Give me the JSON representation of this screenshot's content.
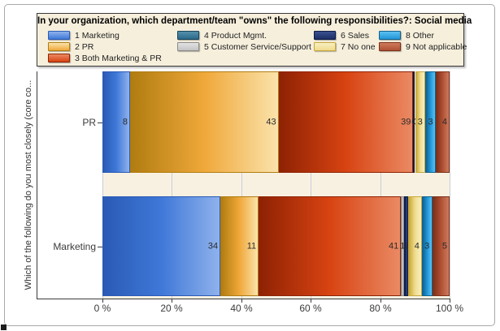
{
  "chart_data": {
    "type": "bar",
    "stacked": true,
    "orientation": "horizontal",
    "title": "In your organization, which department/team \"owns\" the following responsibilities?: Social media",
    "ylabel": "Which of the following do you most closely (core co...",
    "categories": [
      "PR",
      "Marketing"
    ],
    "xticks": [
      "0 %",
      "20 %",
      "40 %",
      "60 %",
      "80 %",
      "100 %"
    ],
    "xlim": [
      0,
      100
    ],
    "grid": "vertical",
    "legend_position": "top",
    "series": [
      {
        "name": "1 Marketing",
        "values": [
          8,
          34
        ],
        "labels": [
          "8",
          "34"
        ],
        "color": {
          "dark": "#2a5ab5",
          "base": "#3f78d8",
          "light": "#8fb2ec"
        }
      },
      {
        "name": "2 PR",
        "values": [
          43,
          11
        ],
        "labels": [
          "43",
          "11"
        ],
        "color": {
          "dark": "#b07c10",
          "base": "#f0a83a",
          "light": "#fae3ac"
        }
      },
      {
        "name": "3 Both Marketing & PR",
        "values": [
          39,
          41
        ],
        "labels": [
          "39",
          "41"
        ],
        "color": {
          "dark": "#8e2203",
          "base": "#d84312",
          "light": "#ea8a64"
        }
      },
      {
        "name": "4 Product Mgmt.",
        "values": [
          0,
          0
        ],
        "labels": [
          "",
          ""
        ],
        "color": {
          "dark": "#17445c",
          "base": "#2c6a8a",
          "light": "#5590ac"
        }
      },
      {
        "name": "5 Customer Service/Support",
        "values": [
          0,
          1
        ],
        "labels": [
          "",
          "1"
        ],
        "color": {
          "dark": "#8a8a8a",
          "base": "#c4c4c4",
          "light": "#e2e2e2"
        }
      },
      {
        "name": "6 Sales",
        "values": [
          0.5,
          1
        ],
        "labels": [
          "0",
          "1"
        ],
        "color": {
          "dark": "#0d1b46",
          "base": "#1c2f66",
          "light": "#3a5090"
        }
      },
      {
        "name": "7 No one",
        "values": [
          3,
          4
        ],
        "labels": [
          "3",
          "4"
        ],
        "color": {
          "dark": "#c8a83a",
          "base": "#f0dc8e",
          "light": "#f8efc2"
        }
      },
      {
        "name": "8 Other",
        "values": [
          3,
          3
        ],
        "labels": [
          "3",
          "3"
        ],
        "color": {
          "dark": "#10618f",
          "base": "#2196d8",
          "light": "#5cc0f0"
        }
      },
      {
        "name": "9 Not applicable",
        "values": [
          4,
          5
        ],
        "labels": [
          "4",
          "5"
        ],
        "color": {
          "dark": "#7e3018",
          "base": "#b05034",
          "light": "#cd7b5c"
        }
      }
    ],
    "legend": {
      "columns": [
        [
          0,
          1,
          2
        ],
        [
          3,
          4
        ],
        [
          5,
          6
        ],
        [
          7,
          8
        ]
      ]
    },
    "colors_misc": {
      "plot_background": "#f8f1e2",
      "legend_background": "#f6efdc",
      "gridline": "#c9ced8",
      "axis": "#3a3a3a",
      "value_label": "#2b2b2b"
    }
  }
}
